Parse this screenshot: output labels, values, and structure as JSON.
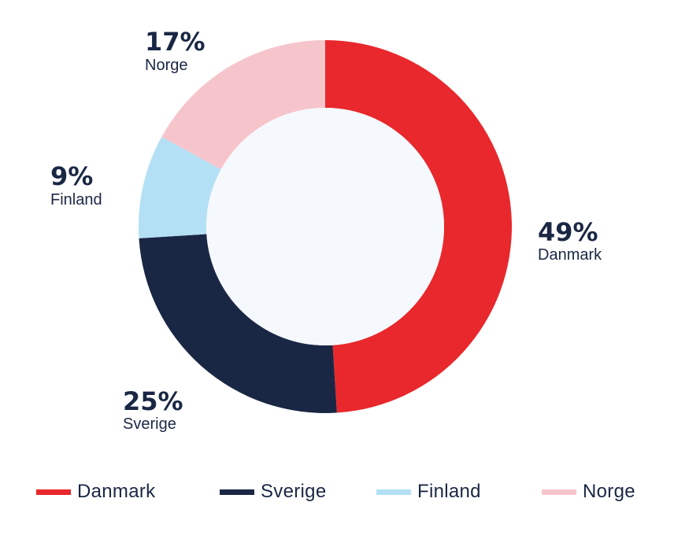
{
  "chart_data": {
    "type": "pie",
    "variant": "donut",
    "categories": [
      "Danmark",
      "Sverige",
      "Finland",
      "Norge"
    ],
    "values": [
      49,
      25,
      9,
      17
    ],
    "value_labels": [
      "49%",
      "25%",
      "9%",
      "17%"
    ],
    "colors": [
      "#e8282c",
      "#1a2744",
      "#b3e0f4",
      "#f6c5cc"
    ],
    "center_color": "#f5f9fd",
    "legend_position": "bottom"
  },
  "legend": {
    "items": [
      {
        "label": "Danmark",
        "color": "#e8282c"
      },
      {
        "label": "Sverige",
        "color": "#1a2744"
      },
      {
        "label": "Finland",
        "color": "#b3e0f4"
      },
      {
        "label": "Norge",
        "color": "#f6c5cc"
      }
    ]
  }
}
